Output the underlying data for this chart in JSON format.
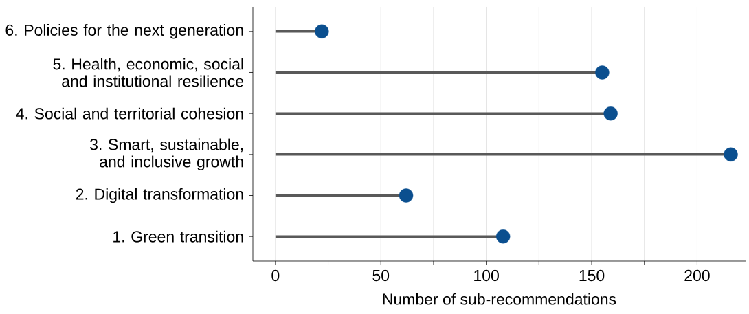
{
  "chart_data": {
    "type": "lollipop",
    "orientation": "horizontal",
    "xlabel": "Number of sub-recommendations",
    "categories": [
      "6. Policies for the next generation",
      "5. Health, economic, social and institutional resilience",
      "4. Social and territorial cohesion",
      "3. Smart, sustainable, and inclusive growth",
      "2. Digital transformation",
      "1. Green transition"
    ],
    "values": [
      22,
      155,
      159,
      216,
      62,
      108
    ],
    "color": "#0b4f8f",
    "grid": "x",
    "xlim": [
      -10.7,
      223
    ],
    "xticks": [
      0,
      {
        "value": 25,
        "label": null
      },
      50,
      {
        "value": 75,
        "label": null
      },
      100,
      {
        "value": 125,
        "label": null
      },
      150,
      {
        "value": 175,
        "label": null
      },
      200
    ]
  }
}
